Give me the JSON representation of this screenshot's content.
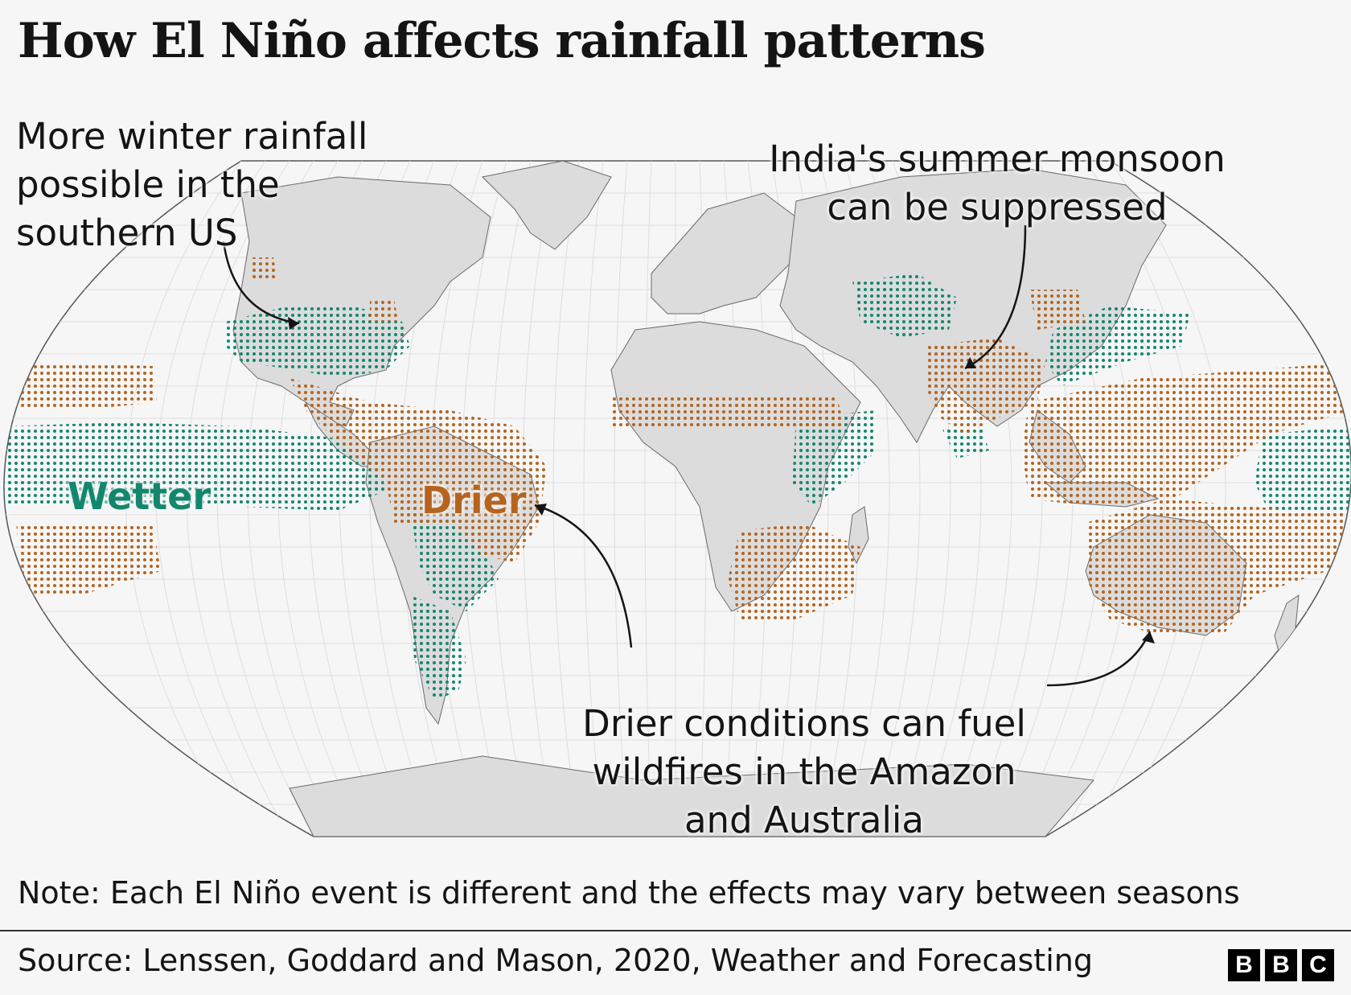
{
  "title": "How El Niño affects rainfall patterns",
  "annotations": {
    "us": "More winter rainfall\npossible in the\nsouthern US",
    "india": "India's summer monsoon\ncan be suppressed",
    "amazon": "Drier conditions can fuel\nwildfires in the Amazon\nand Australia"
  },
  "labels": {
    "wetter": "Wetter",
    "drier": "Drier"
  },
  "colors": {
    "wetter": "#13876e",
    "drier": "#b5641f",
    "land": "#dcdcdc",
    "ocean": "#f6f6f6"
  },
  "note": "Note: Each El Niño event is different and the effects may vary between seasons",
  "source": "Source: Lenssen, Goddard and Mason, 2020, Weather and Forecasting",
  "logo": [
    "B",
    "B",
    "C"
  ]
}
